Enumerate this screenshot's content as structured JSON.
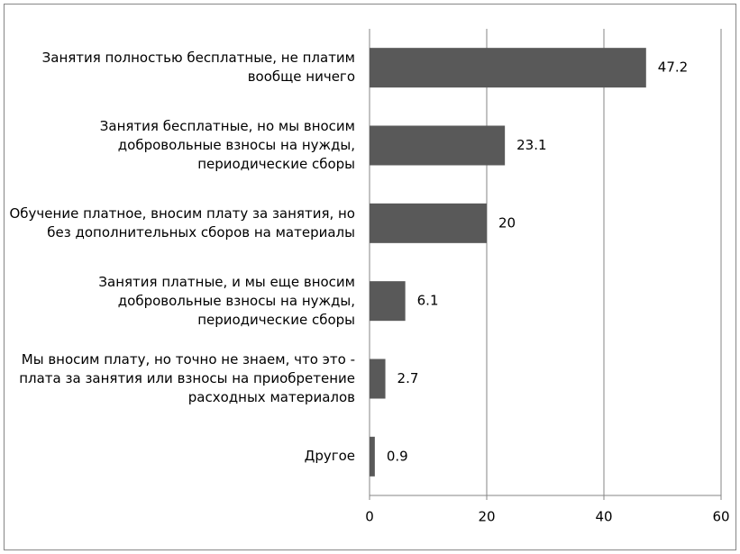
{
  "chart_data": {
    "type": "barh",
    "categories": [
      "Занятия полностью бесплатные, не платим вообще ничего",
      "Занятия бесплатные, но мы вносим добровольные взносы на нужды, периодические сборы",
      "Обучение платное, вносим плату за занятия, но без дополнительных сборов на материалы",
      "Занятия платные, и мы еще вносим добровольные взносы на нужды, периодические сборы",
      "Мы вносим плату, но точно не знаем, что это - плата за занятия или взносы на приобретение расходных материалов",
      "Другое"
    ],
    "values": [
      47.2,
      23.1,
      20,
      6.1,
      2.7,
      0.9
    ],
    "color": "#595959",
    "xlim": [
      0,
      60
    ],
    "xticks": [
      0,
      20,
      40,
      60
    ],
    "grid": true
  }
}
